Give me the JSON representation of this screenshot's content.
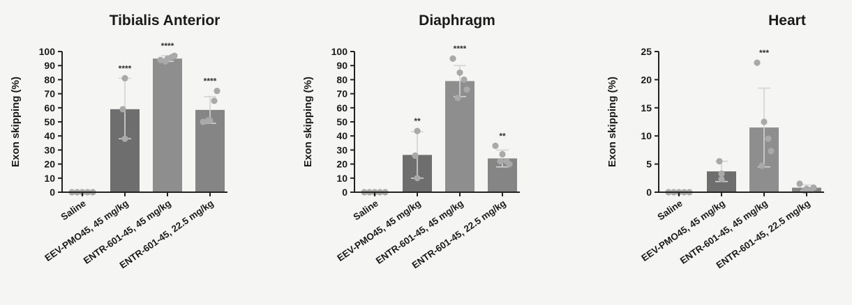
{
  "chart_data": [
    {
      "type": "bar",
      "title": "Tibialis Anterior",
      "ylabel": "Exon skipping (%)",
      "xlabel": "",
      "ylim": [
        0,
        100
      ],
      "yticks": [
        0,
        10,
        20,
        30,
        40,
        50,
        60,
        70,
        80,
        90,
        100
      ],
      "categories": [
        "Saline",
        "EEV-PMO45, 45 mg/kg",
        "ENTR-601-45, 45 mg/kg",
        "ENTR-601-45, 22.5 mg/kg"
      ],
      "values": [
        0,
        59,
        95,
        58.5
      ],
      "error_high": [
        0,
        81,
        97,
        68
      ],
      "error_low": [
        0,
        38,
        93,
        49
      ],
      "points": [
        [
          0,
          0,
          0,
          0,
          0
        ],
        [
          38,
          59,
          81
        ],
        [
          94,
          95,
          96,
          97,
          93
        ],
        [
          50,
          51,
          65,
          72,
          51
        ]
      ],
      "significance": [
        "",
        "****",
        "****",
        "****"
      ],
      "bar_colors": [
        "#6e6e6e",
        "#6e6e6e",
        "#8e8e8e",
        "#858585"
      ]
    },
    {
      "type": "bar",
      "title": "Diaphragm",
      "ylabel": "Exon skipping (%)",
      "xlabel": "",
      "ylim": [
        0,
        100
      ],
      "yticks": [
        0,
        10,
        20,
        30,
        40,
        50,
        60,
        70,
        80,
        90,
        100
      ],
      "categories": [
        "Saline",
        "EEV-PMO45, 45 mg/kg",
        "ENTR-601-45, 45 mg/kg",
        "ENTR-601-45, 22.5 mg/kg"
      ],
      "values": [
        0,
        26.5,
        79,
        24
      ],
      "error_high": [
        0,
        43,
        90,
        30
      ],
      "error_low": [
        0,
        10,
        68,
        18
      ],
      "points": [
        [
          0,
          0,
          0,
          0,
          0
        ],
        [
          10,
          26,
          43.5
        ],
        [
          95,
          85,
          80,
          73,
          67
        ],
        [
          33,
          27,
          22,
          20,
          22
        ]
      ],
      "significance": [
        "",
        "**",
        "****",
        "**"
      ],
      "bar_colors": [
        "#6e6e6e",
        "#6e6e6e",
        "#8e8e8e",
        "#858585"
      ]
    },
    {
      "type": "bar",
      "title": "Heart",
      "ylabel": "Exon skipping (%)",
      "xlabel": "",
      "ylim": [
        0,
        25
      ],
      "yticks": [
        0,
        5,
        10,
        15,
        20,
        25
      ],
      "categories": [
        "Saline",
        "EEV-PMO45, 45 mg/kg",
        "ENTR-601-45, 45 mg/kg",
        "ENTR-601-45, 22.5 mg/kg"
      ],
      "values": [
        0,
        3.7,
        11.5,
        0.8
      ],
      "error_high": [
        0,
        5.5,
        18.5,
        1.3
      ],
      "error_low": [
        0,
        1.9,
        4.5,
        0.3
      ],
      "points": [
        [
          0,
          0,
          0,
          0,
          0
        ],
        [
          2.3,
          5.5,
          3.3
        ],
        [
          23,
          12.5,
          9.5,
          7.3,
          4.7
        ],
        [
          1.5,
          0.6,
          0.4,
          0.8,
          0.3
        ]
      ],
      "significance": [
        "",
        "",
        "***",
        ""
      ],
      "bar_colors": [
        "#6e6e6e",
        "#6e6e6e",
        "#8e8e8e",
        "#858585"
      ]
    }
  ]
}
